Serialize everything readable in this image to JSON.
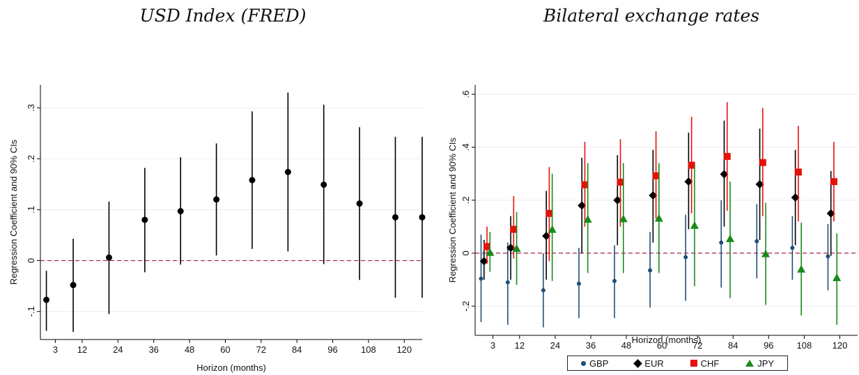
{
  "chart_data": [
    {
      "type": "scatter",
      "title": "USD Index (FRED)",
      "xlabel": "Horizon (months)",
      "ylabel": "Regression Coefficient and 90% CIs",
      "xlim": [
        -2,
        126
      ],
      "ylim": [
        -0.155,
        0.345
      ],
      "xticks": [
        3,
        12,
        24,
        36,
        48,
        60,
        72,
        84,
        96,
        108,
        120
      ],
      "yticks": [
        -0.1,
        0,
        0.1,
        0.2,
        0.3
      ],
      "ytick_labels": [
        "-.1",
        "0",
        ".1",
        ".2",
        ".3"
      ],
      "grid": true,
      "reference_line": 0,
      "series": [
        {
          "color": "#000000",
          "marker": "circle",
          "x": [
            0,
            9,
            21,
            33,
            45,
            57,
            69,
            81,
            93,
            105,
            117,
            126
          ],
          "y": [
            -0.077,
            -0.048,
            0.006,
            0.08,
            0.097,
            0.12,
            0.158,
            0.174,
            0.149,
            0.112,
            0.085,
            0.085
          ],
          "lo": [
            -0.138,
            -0.14,
            -0.105,
            -0.023,
            -0.008,
            0.01,
            0.023,
            0.018,
            -0.007,
            -0.038,
            -0.073,
            -0.073
          ],
          "hi": [
            -0.02,
            0.043,
            0.116,
            0.182,
            0.203,
            0.23,
            0.293,
            0.33,
            0.306,
            0.262,
            0.243,
            0.243
          ]
        }
      ]
    },
    {
      "type": "scatter",
      "title": "Bilateral exchange rates",
      "xlabel": "Horizon (months)",
      "ylabel": "Regression Coefficient and 90% CIs",
      "xlim": [
        -3,
        126
      ],
      "ylim": [
        -0.31,
        0.635
      ],
      "xticks": [
        3,
        12,
        24,
        36,
        48,
        60,
        72,
        84,
        96,
        108,
        120
      ],
      "yticks": [
        -0.2,
        0,
        0.2,
        0.4,
        0.6
      ],
      "ytick_labels": [
        "-.2",
        "0",
        ".2",
        ".4",
        ".6"
      ],
      "grid": true,
      "reference_line": 0,
      "legend": "bottom",
      "series": [
        {
          "name": "GBP",
          "color": "#1f4e79",
          "marker": "circle",
          "x": [
            -1,
            8,
            20,
            32,
            44,
            56,
            68,
            80,
            92,
            104,
            116
          ],
          "y": [
            -0.096,
            -0.11,
            -0.14,
            -0.115,
            -0.105,
            -0.065,
            -0.015,
            0.04,
            0.045,
            0.02,
            -0.012
          ],
          "lo": [
            -0.26,
            -0.27,
            -0.28,
            -0.245,
            -0.245,
            -0.205,
            -0.18,
            -0.13,
            -0.095,
            -0.1,
            -0.14
          ],
          "hi": [
            0.07,
            0.04,
            0.0,
            0.02,
            0.03,
            0.08,
            0.145,
            0.2,
            0.185,
            0.14,
            0.11
          ]
        },
        {
          "name": "EUR",
          "color": "#000000",
          "marker": "diamond",
          "x": [
            0,
            9,
            21,
            33,
            45,
            57,
            69,
            81,
            93,
            105,
            117
          ],
          "y": [
            -0.03,
            0.02,
            0.065,
            0.18,
            0.2,
            0.218,
            0.27,
            0.298,
            0.26,
            0.21,
            0.15
          ],
          "lo": [
            -0.1,
            -0.1,
            -0.1,
            0.0,
            0.03,
            0.04,
            0.09,
            0.1,
            0.05,
            0.03,
            -0.01
          ],
          "hi": [
            0.05,
            0.14,
            0.235,
            0.36,
            0.37,
            0.39,
            0.455,
            0.5,
            0.47,
            0.39,
            0.31
          ]
        },
        {
          "name": "CHF",
          "color": "#e3120b",
          "marker": "square",
          "x": [
            1,
            10,
            22,
            34,
            46,
            58,
            70,
            82,
            94,
            106,
            118
          ],
          "y": [
            0.025,
            0.09,
            0.15,
            0.258,
            0.268,
            0.292,
            0.332,
            0.365,
            0.342,
            0.306,
            0.27
          ],
          "lo": [
            -0.04,
            -0.02,
            -0.03,
            0.1,
            0.1,
            0.13,
            0.15,
            0.16,
            0.14,
            0.12,
            0.12
          ],
          "hi": [
            0.1,
            0.215,
            0.325,
            0.42,
            0.43,
            0.46,
            0.515,
            0.57,
            0.548,
            0.48,
            0.42
          ]
        },
        {
          "name": "JPY",
          "color": "#1a8a1a",
          "marker": "triangle",
          "x": [
            2,
            11,
            23,
            35,
            47,
            59,
            71,
            83,
            95,
            107,
            119
          ],
          "y": [
            0.003,
            0.018,
            0.09,
            0.128,
            0.13,
            0.132,
            0.105,
            0.055,
            -0.002,
            -0.06,
            -0.092
          ],
          "lo": [
            -0.07,
            -0.12,
            -0.105,
            -0.075,
            -0.075,
            -0.075,
            -0.125,
            -0.17,
            -0.195,
            -0.235,
            -0.27
          ],
          "hi": [
            0.08,
            0.155,
            0.3,
            0.34,
            0.34,
            0.34,
            0.33,
            0.27,
            0.19,
            0.115,
            0.075
          ]
        }
      ]
    }
  ]
}
